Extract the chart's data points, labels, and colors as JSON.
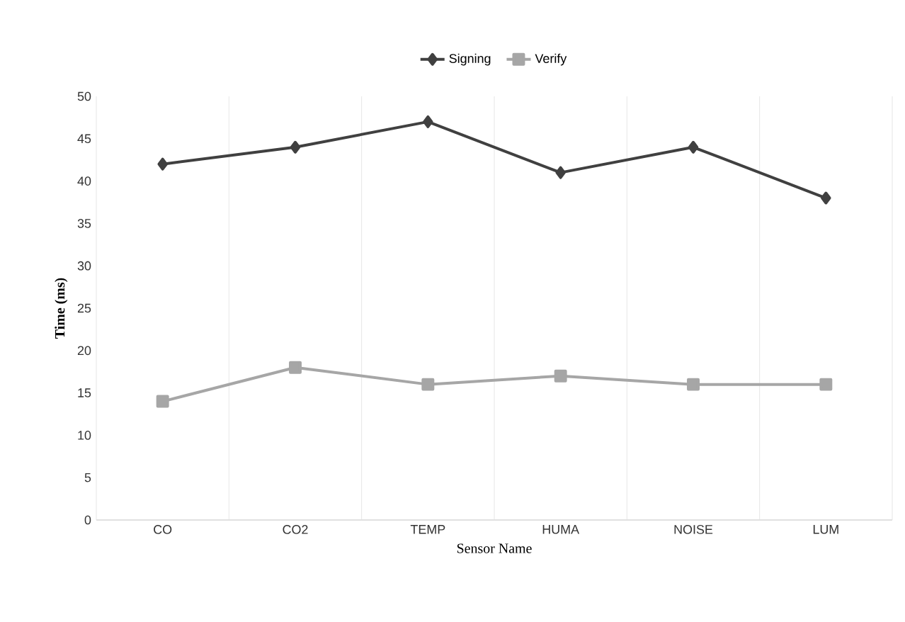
{
  "chart_data": {
    "type": "line",
    "xlabel": "Sensor Name",
    "ylabel": "Time (ms)",
    "categories": [
      "CO",
      "CO2",
      "TEMP",
      "HUMA",
      "NOISE",
      "LUM"
    ],
    "series": [
      {
        "name": "Signing",
        "color": "#404040",
        "marker": "diamond",
        "values": [
          42,
          44,
          47,
          41,
          44,
          38
        ]
      },
      {
        "name": "Verify",
        "color": "#a6a6a6",
        "marker": "square",
        "values": [
          14,
          18,
          16,
          17,
          16,
          16
        ]
      }
    ],
    "ylim": [
      0,
      50
    ],
    "yticks": [
      0,
      5,
      10,
      15,
      20,
      25,
      30,
      35,
      40,
      45,
      50
    ],
    "grid": "x",
    "legend": "top",
    "line_style": "solid"
  }
}
